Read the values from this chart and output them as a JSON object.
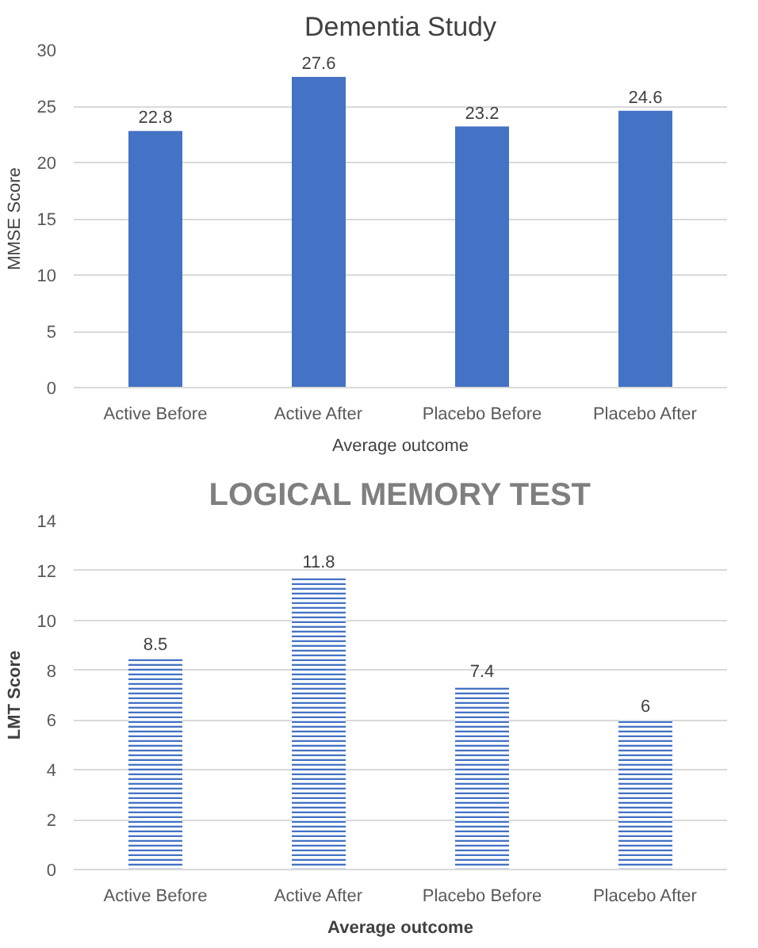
{
  "chart_data": [
    {
      "type": "bar",
      "title": "Dementia Study",
      "xlabel": "Average outcome",
      "ylabel": "MMSE Score",
      "categories": [
        "Active Before",
        "Active After",
        "Placebo Before",
        "Placebo After"
      ],
      "values": [
        22.8,
        27.6,
        23.2,
        24.6
      ],
      "color": "#4472c4",
      "ylim": [
        0,
        30
      ],
      "yticks": [
        0,
        5,
        10,
        15,
        20,
        25,
        30
      ],
      "grid": "y",
      "data_labels": true
    },
    {
      "type": "bar",
      "title": "LOGICAL MEMORY TEST",
      "xlabel": "Average outcome",
      "ylabel": "LMT Score",
      "categories": [
        "Active Before",
        "Active After",
        "Placebo Before",
        "Placebo After"
      ],
      "values": [
        8.5,
        11.8,
        7.4,
        6
      ],
      "color": "#4472c4",
      "ylim": [
        0,
        14
      ],
      "yticks": [
        0,
        2,
        4,
        6,
        8,
        10,
        12,
        14
      ],
      "grid": "y",
      "data_labels": true
    }
  ]
}
